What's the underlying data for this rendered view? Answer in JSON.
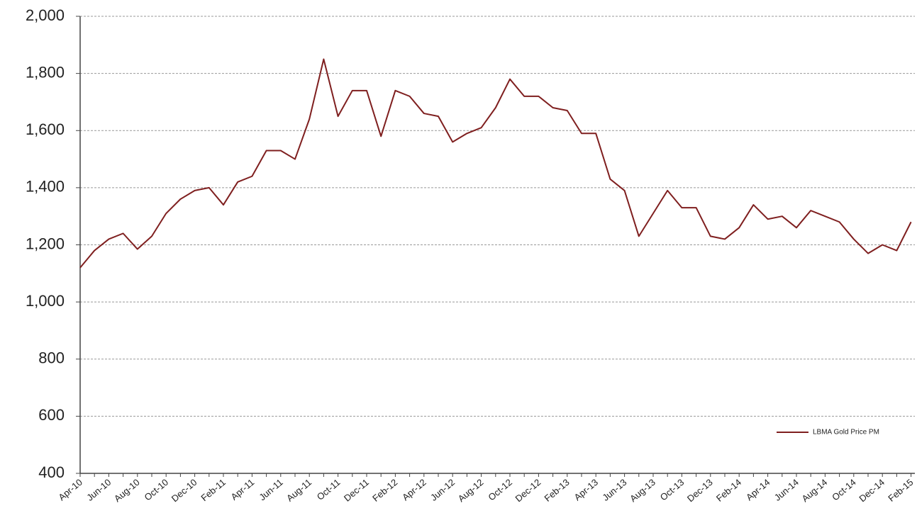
{
  "chart_data": {
    "type": "line",
    "categories": [
      "Apr-10",
      null,
      "Jun-10",
      null,
      "Aug-10",
      null,
      "Oct-10",
      null,
      "Dec-10",
      null,
      "Feb-11",
      null,
      "Apr-11",
      null,
      "Jun-11",
      null,
      "Aug-11",
      null,
      "Oct-11",
      null,
      "Dec-11",
      null,
      "Feb-12",
      null,
      "Apr-12",
      null,
      "Jun-12",
      null,
      "Aug-12",
      null,
      "Oct-12",
      null,
      "Dec-12",
      null,
      "Feb-13",
      null,
      "Apr-13",
      null,
      "Jun-13",
      null,
      "Aug-13",
      null,
      "Oct-13",
      null,
      "Dec-13",
      null,
      "Feb-14",
      null,
      "Apr-14",
      null,
      "Jun-14",
      null,
      "Aug-14",
      null,
      "Oct-14",
      null,
      "Dec-14",
      null,
      "Feb-15"
    ],
    "series": [
      {
        "name": "LBMA Gold Price PM",
        "color": "#7f1f1f",
        "values": [
          1120,
          1180,
          1220,
          1240,
          1185,
          1230,
          1310,
          1360,
          1390,
          1400,
          1340,
          1420,
          1440,
          1530,
          1530,
          1500,
          1640,
          1850,
          1650,
          1740,
          1740,
          1580,
          1740,
          1720,
          1660,
          1650,
          1560,
          1590,
          1610,
          1680,
          1780,
          1720,
          1720,
          1680,
          1670,
          1590,
          1590,
          1430,
          1390,
          1230,
          1310,
          1390,
          1330,
          1330,
          1230,
          1220,
          1260,
          1340,
          1290,
          1300,
          1260,
          1320,
          1300,
          1280,
          1220,
          1170,
          1200,
          1180,
          1280
        ]
      }
    ],
    "ylim": [
      400,
      2000
    ],
    "yticks": [
      {
        "value": 400,
        "label": "400"
      },
      {
        "value": 600,
        "label": "600"
      },
      {
        "value": 800,
        "label": "800"
      },
      {
        "value": 1000,
        "label": "1,000"
      },
      {
        "value": 1200,
        "label": "1,200"
      },
      {
        "value": 1400,
        "label": "1,400"
      },
      {
        "value": 1600,
        "label": "1,600"
      },
      {
        "value": 1800,
        "label": "1,800"
      },
      {
        "value": 2000,
        "label": "2,000"
      }
    ],
    "grid": true,
    "legend": "lower right"
  }
}
